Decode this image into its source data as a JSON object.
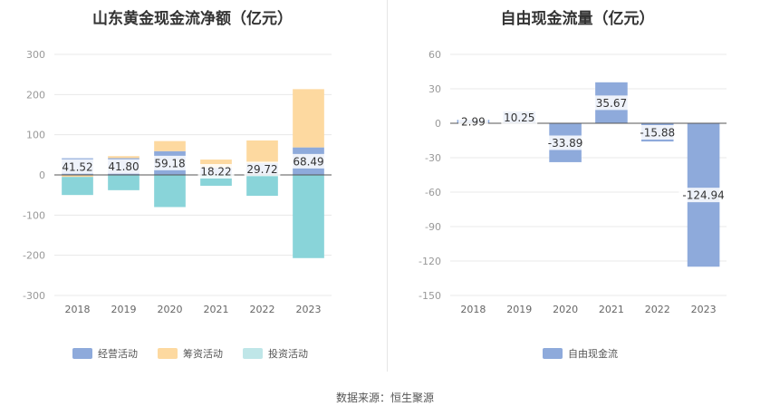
{
  "source_label": "数据来源：恒生聚源",
  "chart_data": [
    {
      "type": "bar",
      "stacked": true,
      "title": "山东黄金现金流净额（亿元）",
      "categories": [
        "2018",
        "2019",
        "2020",
        "2021",
        "2022",
        "2023"
      ],
      "ylim": [
        -300,
        300
      ],
      "yticks": [
        300,
        200,
        100,
        0,
        -100,
        -200,
        -300
      ],
      "grid": true,
      "legend_position": "bottom",
      "series": [
        {
          "name": "经营活动",
          "color": "#8eaadb",
          "values": [
            41.52,
            41.8,
            59.18,
            18.22,
            29.72,
            68.49
          ]
        },
        {
          "name": "筹资活动",
          "color": "#fdd9a0",
          "values": [
            -5,
            5,
            25,
            20,
            56,
            145
          ]
        },
        {
          "name": "投资活动",
          "color": "#bfe6e8",
          "bar_color": "#89d4d9",
          "values": [
            -45,
            -38,
            -80,
            -27,
            -52,
            -207
          ]
        }
      ],
      "data_labels": [
        "41.52",
        "41.80",
        "59.18",
        "18.22",
        "29.72",
        "68.49"
      ]
    },
    {
      "type": "bar",
      "title": "自由现金流量（亿元）",
      "categories": [
        "2018",
        "2019",
        "2020",
        "2021",
        "2022",
        "2023"
      ],
      "ylim": [
        -150,
        60
      ],
      "yticks": [
        60,
        30,
        0,
        -30,
        -60,
        -90,
        -120,
        -150
      ],
      "grid": true,
      "legend_position": "bottom",
      "series": [
        {
          "name": "自由现金流",
          "color": "#8eaadb",
          "values": [
            2.99,
            10.25,
            -33.89,
            35.67,
            -15.88,
            -124.94
          ]
        }
      ],
      "data_labels": [
        "2.99",
        "10.25",
        "-33.89",
        "35.67",
        "-15.88",
        "-124.94"
      ]
    }
  ]
}
